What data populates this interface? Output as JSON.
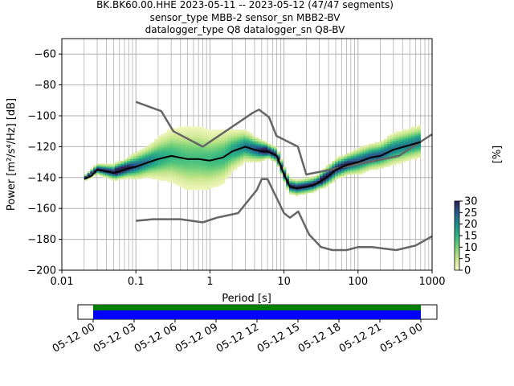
{
  "header": {
    "title_line1": "BK.BK60.00.HHE   2023-05-11 -- 2023-05-12  (47/47 segments)",
    "title_line2": "sensor_type MBB-2 sensor_sn MBB2-BV",
    "title_line3": "datalogger_type Q8 datalogger_sn Q8-BV"
  },
  "colorbar": {
    "label": "[%]",
    "ticks": [
      "0",
      "5",
      "10",
      "15",
      "20",
      "25",
      "30"
    ],
    "range": [
      0,
      30
    ]
  },
  "timeline": {
    "ticks": [
      "05-12 00",
      "05-12 03",
      "05-12 06",
      "05-12 09",
      "05-12 12",
      "05-12 15",
      "05-12 18",
      "05-12 21",
      "05-13 00"
    ],
    "coverage_color": "#0000ff",
    "status_color": "#008000"
  },
  "colors": {
    "mode_line": "#000000",
    "noise_models": "#666666",
    "grid": "#b0b0b0",
    "colormap": [
      "#fafac8",
      "#c8e68c",
      "#78d278",
      "#2db482",
      "#1e8c8c",
      "#285a8c",
      "#2d1e50"
    ]
  },
  "chart_data": {
    "type": "heatmap",
    "xlabel": "Period [s]",
    "ylabel": "Power [m²/s⁴/Hz] [dB]",
    "xscale": "log",
    "xlim": [
      0.01,
      1000
    ],
    "ylim": [
      -200,
      -50
    ],
    "xticks": [
      "0.01",
      "0.1",
      "1",
      "10",
      "100",
      "1000"
    ],
    "yticks": [
      "−200",
      "−180",
      "−160",
      "−140",
      "−120",
      "−100",
      "−80",
      "−60"
    ],
    "grid": true,
    "mode": {
      "x": [
        0.02,
        0.025,
        0.03,
        0.04,
        0.05,
        0.06,
        0.08,
        0.1,
        0.15,
        0.2,
        0.3,
        0.5,
        0.7,
        1,
        1.5,
        2,
        3,
        4,
        5,
        6,
        8,
        10,
        12,
        15,
        20,
        25,
        30,
        40,
        50,
        70,
        100,
        150,
        200,
        300,
        500,
        700
      ],
      "y": [
        -141,
        -139,
        -135,
        -136,
        -137,
        -136,
        -134,
        -133,
        -130,
        -128,
        -126,
        -128,
        -128,
        -129,
        -127,
        -123,
        -120,
        -122,
        -123,
        -123,
        -126,
        -138,
        -146,
        -147,
        -146,
        -145,
        -143,
        -139,
        -135,
        -132,
        -130,
        -127,
        -126,
        -122,
        -119,
        -117
      ]
    },
    "nhnm": {
      "x": [
        0.1,
        0.22,
        0.32,
        0.8,
        3.8,
        4.6,
        6.3,
        7.9,
        15.4,
        20,
        354.8,
        1000
      ],
      "y": [
        -91,
        -97,
        -110,
        -120,
        -98,
        -96,
        -101,
        -113,
        -120,
        -138,
        -126,
        -112
      ]
    },
    "nlnm": {
      "x": [
        0.1,
        0.17,
        0.4,
        0.8,
        1.24,
        2.4,
        4.3,
        5,
        6,
        10,
        12,
        15.6,
        21.9,
        31.6,
        45,
        70,
        101,
        154,
        328,
        600,
        1000
      ],
      "y": [
        -168,
        -167,
        -167,
        -169,
        -166,
        -163,
        -148,
        -141,
        -141,
        -163,
        -166,
        -162,
        -177,
        -185,
        -187,
        -187,
        -185,
        -185,
        -187,
        -184,
        -178
      ]
    },
    "density": {
      "x": [
        0.02,
        0.03,
        0.05,
        0.08,
        0.1,
        0.15,
        0.2,
        0.3,
        0.5,
        0.7,
        1,
        1.5,
        2,
        3,
        4,
        5,
        6,
        8,
        10,
        12,
        15,
        20,
        25,
        30,
        40,
        50,
        70,
        100,
        150,
        200,
        300,
        500,
        700
      ],
      "center": [
        -141,
        -135,
        -137,
        -134,
        -133,
        -130,
        -128,
        -126,
        -128,
        -128,
        -129,
        -127,
        -123,
        -120,
        -122,
        -123,
        -123,
        -126,
        -138,
        -146,
        -147,
        -146,
        -145,
        -143,
        -139,
        -135,
        -132,
        -130,
        -127,
        -126,
        -122,
        -119,
        -117
      ],
      "spread": [
        1,
        2,
        3,
        4,
        5,
        6,
        8,
        10,
        12,
        12,
        11,
        10,
        8,
        6,
        5,
        4,
        3,
        3,
        3,
        3,
        3,
        3,
        3,
        3,
        4,
        4,
        4,
        5,
        5,
        5,
        6,
        6,
        6
      ]
    }
  }
}
